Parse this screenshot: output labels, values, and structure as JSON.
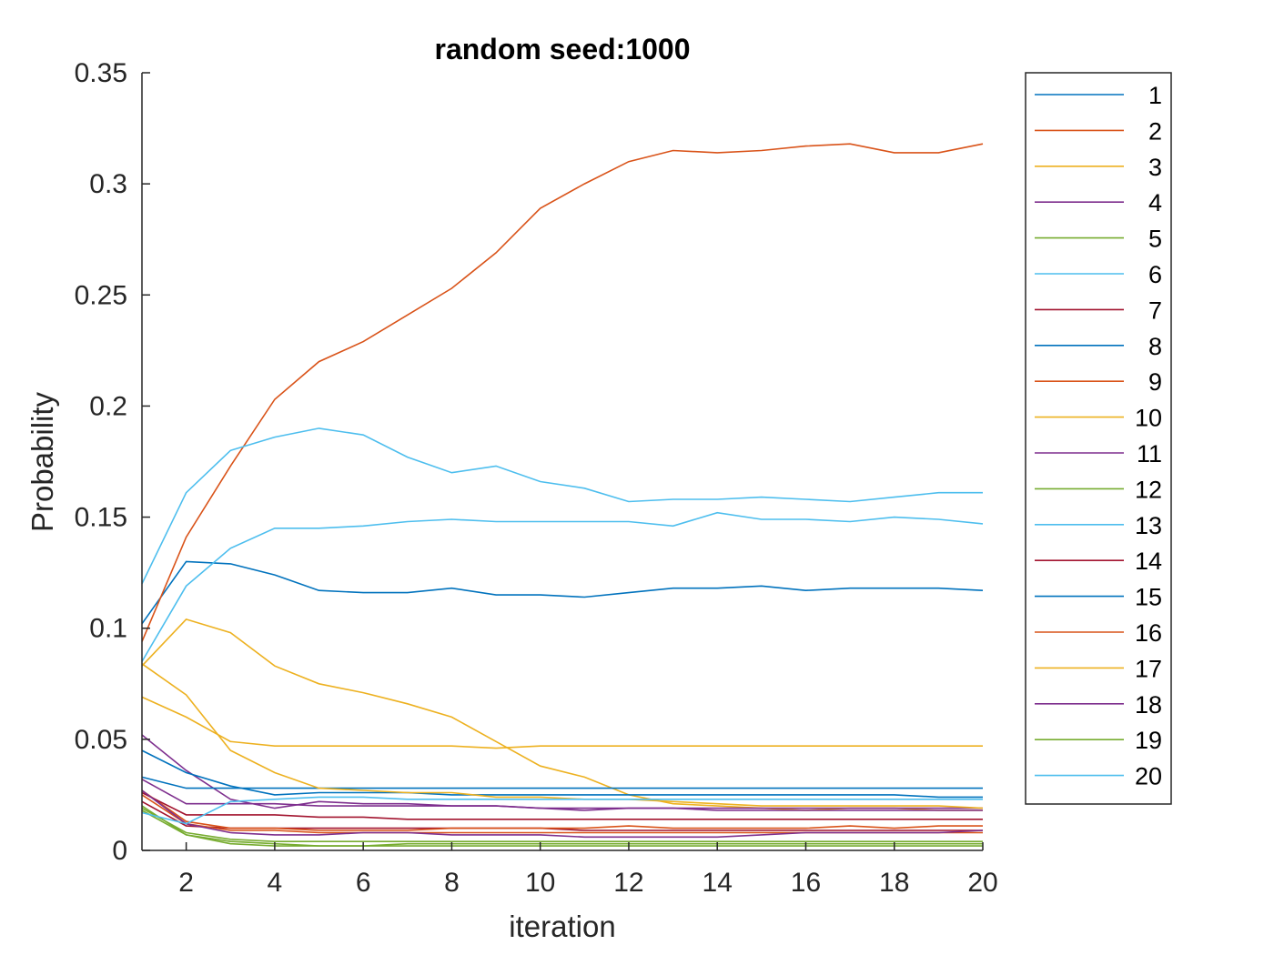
{
  "chart_data": {
    "type": "line",
    "title": "random seed:1000",
    "xlabel": "iteration",
    "ylabel": "Probability",
    "xlim": [
      1,
      20
    ],
    "ylim": [
      0,
      0.35
    ],
    "xticks": [
      "2",
      "4",
      "6",
      "8",
      "10",
      "12",
      "14",
      "16",
      "18",
      "20"
    ],
    "yticks": [
      "0",
      "0.05",
      "0.1",
      "0.15",
      "0.2",
      "0.25",
      "0.3",
      "0.35"
    ],
    "x": [
      1,
      2,
      3,
      4,
      5,
      6,
      7,
      8,
      9,
      10,
      11,
      12,
      13,
      14,
      15,
      16,
      17,
      18,
      19,
      20
    ],
    "legend_position": "outside-right",
    "series": [
      {
        "name": "1",
        "color": "#0072BD",
        "values": [
          0.102,
          0.13,
          0.129,
          0.124,
          0.117,
          0.116,
          0.116,
          0.118,
          0.115,
          0.115,
          0.114,
          0.116,
          0.118,
          0.118,
          0.119,
          0.117,
          0.118,
          0.118,
          0.118,
          0.117
        ]
      },
      {
        "name": "2",
        "color": "#D95319",
        "values": [
          0.094,
          0.141,
          0.173,
          0.203,
          0.22,
          0.229,
          0.241,
          0.253,
          0.269,
          0.289,
          0.3,
          0.31,
          0.315,
          0.314,
          0.315,
          0.317,
          0.318,
          0.314,
          0.314,
          0.318
        ]
      },
      {
        "name": "3",
        "color": "#EDB120",
        "values": [
          0.083,
          0.104,
          0.098,
          0.083,
          0.075,
          0.071,
          0.066,
          0.06,
          0.049,
          0.038,
          0.033,
          0.025,
          0.021,
          0.02,
          0.019,
          0.018,
          0.019,
          0.019,
          0.018,
          0.018
        ]
      },
      {
        "name": "4",
        "color": "#7E2F8E",
        "values": [
          0.052,
          0.036,
          0.023,
          0.019,
          0.022,
          0.021,
          0.021,
          0.02,
          0.02,
          0.019,
          0.018,
          0.019,
          0.019,
          0.019,
          0.019,
          0.019,
          0.019,
          0.019,
          0.019,
          0.019
        ]
      },
      {
        "name": "5",
        "color": "#77AC30",
        "values": [
          0.02,
          0.007,
          0.004,
          0.003,
          0.002,
          0.002,
          0.003,
          0.003,
          0.003,
          0.003,
          0.003,
          0.003,
          0.003,
          0.003,
          0.003,
          0.003,
          0.003,
          0.003,
          0.003,
          0.003
        ]
      },
      {
        "name": "6",
        "color": "#4DBEEE",
        "values": [
          0.12,
          0.161,
          0.18,
          0.186,
          0.19,
          0.187,
          0.177,
          0.17,
          0.173,
          0.166,
          0.163,
          0.157,
          0.158,
          0.158,
          0.159,
          0.158,
          0.157,
          0.159,
          0.161,
          0.161
        ]
      },
      {
        "name": "7",
        "color": "#A2142F",
        "values": [
          0.022,
          0.011,
          0.01,
          0.01,
          0.01,
          0.01,
          0.01,
          0.01,
          0.01,
          0.01,
          0.009,
          0.009,
          0.009,
          0.009,
          0.009,
          0.009,
          0.009,
          0.009,
          0.009,
          0.009
        ]
      },
      {
        "name": "8",
        "color": "#0072BD",
        "values": [
          0.045,
          0.035,
          0.029,
          0.025,
          0.026,
          0.026,
          0.026,
          0.025,
          0.025,
          0.025,
          0.025,
          0.025,
          0.025,
          0.025,
          0.025,
          0.025,
          0.025,
          0.025,
          0.024,
          0.024
        ]
      },
      {
        "name": "9",
        "color": "#D95319",
        "values": [
          0.027,
          0.013,
          0.01,
          0.01,
          0.009,
          0.009,
          0.009,
          0.01,
          0.01,
          0.01,
          0.01,
          0.011,
          0.01,
          0.01,
          0.01,
          0.01,
          0.011,
          0.01,
          0.011,
          0.011
        ]
      },
      {
        "name": "10",
        "color": "#EDB120",
        "values": [
          0.069,
          0.06,
          0.049,
          0.047,
          0.047,
          0.047,
          0.047,
          0.047,
          0.046,
          0.047,
          0.047,
          0.047,
          0.047,
          0.047,
          0.047,
          0.047,
          0.047,
          0.047,
          0.047,
          0.047
        ]
      },
      {
        "name": "11",
        "color": "#7E2F8E",
        "values": [
          0.032,
          0.021,
          0.021,
          0.021,
          0.02,
          0.02,
          0.02,
          0.02,
          0.02,
          0.019,
          0.019,
          0.019,
          0.019,
          0.018,
          0.018,
          0.018,
          0.018,
          0.018,
          0.018,
          0.018
        ]
      },
      {
        "name": "12",
        "color": "#77AC30",
        "values": [
          0.019,
          0.008,
          0.005,
          0.004,
          0.004,
          0.004,
          0.004,
          0.004,
          0.004,
          0.004,
          0.004,
          0.004,
          0.004,
          0.004,
          0.004,
          0.004,
          0.004,
          0.004,
          0.004,
          0.004
        ]
      },
      {
        "name": "13",
        "color": "#4DBEEE",
        "values": [
          0.085,
          0.119,
          0.136,
          0.145,
          0.145,
          0.146,
          0.148,
          0.149,
          0.148,
          0.148,
          0.148,
          0.148,
          0.146,
          0.152,
          0.149,
          0.149,
          0.148,
          0.15,
          0.149,
          0.147
        ]
      },
      {
        "name": "14",
        "color": "#A2142F",
        "values": [
          0.026,
          0.016,
          0.016,
          0.016,
          0.015,
          0.015,
          0.014,
          0.014,
          0.014,
          0.014,
          0.014,
          0.014,
          0.014,
          0.014,
          0.014,
          0.014,
          0.014,
          0.014,
          0.014,
          0.014
        ]
      },
      {
        "name": "15",
        "color": "#0072BD",
        "values": [
          0.033,
          0.028,
          0.028,
          0.028,
          0.028,
          0.028,
          0.028,
          0.028,
          0.028,
          0.028,
          0.028,
          0.028,
          0.028,
          0.028,
          0.028,
          0.028,
          0.028,
          0.028,
          0.028,
          0.028
        ]
      },
      {
        "name": "16",
        "color": "#D95319",
        "values": [
          0.025,
          0.012,
          0.009,
          0.009,
          0.008,
          0.008,
          0.008,
          0.008,
          0.008,
          0.008,
          0.008,
          0.008,
          0.008,
          0.008,
          0.008,
          0.008,
          0.008,
          0.008,
          0.008,
          0.008
        ]
      },
      {
        "name": "17",
        "color": "#EDB120",
        "values": [
          0.084,
          0.07,
          0.045,
          0.035,
          0.028,
          0.027,
          0.026,
          0.026,
          0.024,
          0.024,
          0.023,
          0.023,
          0.022,
          0.021,
          0.02,
          0.02,
          0.02,
          0.02,
          0.02,
          0.019
        ]
      },
      {
        "name": "18",
        "color": "#7E2F8E",
        "values": [
          0.027,
          0.012,
          0.008,
          0.007,
          0.007,
          0.008,
          0.008,
          0.007,
          0.007,
          0.007,
          0.006,
          0.006,
          0.006,
          0.006,
          0.007,
          0.008,
          0.008,
          0.008,
          0.008,
          0.009
        ]
      },
      {
        "name": "19",
        "color": "#77AC30",
        "values": [
          0.018,
          0.007,
          0.003,
          0.002,
          0.002,
          0.002,
          0.002,
          0.002,
          0.002,
          0.002,
          0.002,
          0.002,
          0.002,
          0.002,
          0.002,
          0.002,
          0.002,
          0.002,
          0.002,
          0.002
        ]
      },
      {
        "name": "20",
        "color": "#4DBEEE",
        "values": [
          0.017,
          0.012,
          0.022,
          0.023,
          0.024,
          0.024,
          0.023,
          0.023,
          0.023,
          0.023,
          0.023,
          0.023,
          0.023,
          0.023,
          0.023,
          0.023,
          0.023,
          0.023,
          0.023,
          0.023
        ]
      }
    ]
  }
}
